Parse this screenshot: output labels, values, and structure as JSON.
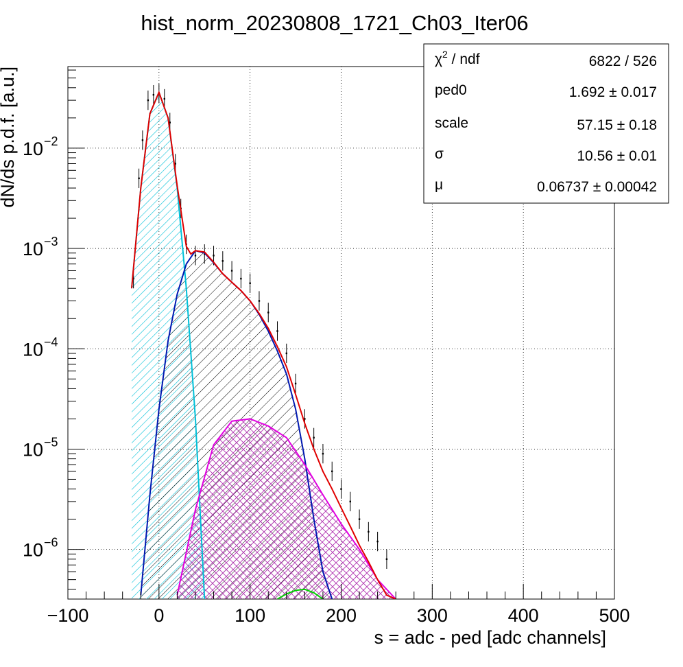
{
  "chart_data": {
    "type": "line",
    "title": "hist_norm_20230808_1721_Ch03_Iter06",
    "xlabel": "s = adc - ped [adc channels]",
    "ylabel": "dN/ds p.d.f. [a.u.]",
    "xlim": [
      -100,
      500
    ],
    "ylim": [
      3.2e-07,
      0.065
    ],
    "yscale": "log",
    "grid": true,
    "x_ticks": [
      {
        "value": -100,
        "label": "−100"
      },
      {
        "value": 0,
        "label": "0"
      },
      {
        "value": 100,
        "label": "100"
      },
      {
        "value": 200,
        "label": "200"
      },
      {
        "value": 300,
        "label": "300"
      },
      {
        "value": 400,
        "label": "400"
      },
      {
        "value": 500,
        "label": "500"
      }
    ],
    "y_ticks": [
      {
        "value": 0.01,
        "base": "10",
        "exp": "−2"
      },
      {
        "value": 0.001,
        "base": "10",
        "exp": "−3"
      },
      {
        "value": 0.0001,
        "base": "10",
        "exp": "−4"
      },
      {
        "value": 1e-05,
        "base": "10",
        "exp": "−5"
      },
      {
        "value": 1e-06,
        "base": "10",
        "exp": "−6"
      }
    ],
    "stats": {
      "chi2_symbol": "χ",
      "chi2_sup": "2",
      "chi2_rest": " / ndf",
      "rows": [
        {
          "name": "ped0",
          "value": "1.692 ± 0.017"
        },
        {
          "name": "scale",
          "value": "57.15 ± 0.18"
        },
        {
          "name": "σ",
          "value": "10.56 ± 0.01"
        },
        {
          "name": "μ",
          "value": "0.06737 ± 0.00042"
        }
      ],
      "chi2_value": "6822 / 526"
    },
    "series": [
      {
        "color": "#00c0d8",
        "hatch": "cyan-diagonal",
        "x": [
          -30,
          -20,
          -10,
          0,
          10,
          20,
          30,
          40,
          50
        ],
        "y": [
          0.0004,
          0.004,
          0.022,
          0.036,
          0.02,
          0.004,
          0.0004,
          2e-05,
          3e-07
        ]
      },
      {
        "color": "#0018b0",
        "hatch": "black-diagonal",
        "x": [
          -20,
          -10,
          0,
          10,
          20,
          30,
          40,
          50,
          60,
          70,
          80,
          90,
          100,
          110,
          120,
          130,
          140,
          150,
          160,
          170,
          180,
          190
        ],
        "y": [
          3.5e-07,
          3.5e-06,
          2.5e-05,
          0.00012,
          0.00035,
          0.0007,
          0.00095,
          0.0009,
          0.00072,
          0.00056,
          0.00046,
          0.00038,
          0.0003,
          0.00022,
          0.00015,
          9.5e-05,
          5.6e-05,
          2.5e-05,
          8e-06,
          2e-06,
          6e-07,
          3.2e-07
        ]
      },
      {
        "color": "#e000e0",
        "hatch": "magenta-cross",
        "x": [
          20,
          40,
          60,
          80,
          100,
          120,
          140,
          160,
          180,
          200,
          220,
          240,
          260
        ],
        "y": [
          3.5e-07,
          2.5e-06,
          1.1e-05,
          1.9e-05,
          2e-05,
          1.7e-05,
          1.3e-05,
          7e-06,
          3.5e-06,
          1.8e-06,
          1e-06,
          5e-07,
          3.2e-07
        ]
      },
      {
        "color": "#00d000",
        "x": [
          130,
          140,
          150,
          160,
          170,
          180
        ],
        "y": [
          3.2e-07,
          3.6e-07,
          3.9e-07,
          4e-07,
          3.7e-07,
          3.2e-07
        ]
      },
      {
        "color": "#e00000",
        "x": [
          -30,
          -20,
          -10,
          0,
          10,
          20,
          30,
          35,
          40,
          50,
          60,
          70,
          80,
          90,
          100,
          110,
          120,
          130,
          140,
          150,
          160,
          170,
          180,
          190,
          200,
          210,
          220,
          230,
          240,
          250,
          260
        ],
        "y": [
          0.0004,
          0.004,
          0.022,
          0.036,
          0.02,
          0.0042,
          0.00105,
          0.00088,
          0.00095,
          0.00092,
          0.00073,
          0.00056,
          0.00046,
          0.00038,
          0.0003,
          0.000225,
          0.00016,
          0.000105,
          6.6e-05,
          3.5e-05,
          1.8e-05,
          1e-05,
          6e-06,
          4e-06,
          2.6e-06,
          1.7e-06,
          1.1e-06,
          7.5e-07,
          5e-07,
          3.5e-07,
          3.2e-07
        ]
      }
    ],
    "data_points": {
      "x": [
        -28,
        -22,
        -18,
        -12,
        -6,
        0,
        6,
        12,
        18,
        24,
        30,
        40,
        50,
        60,
        70,
        80,
        90,
        100,
        110,
        120,
        130,
        140,
        150,
        160,
        170,
        180,
        190,
        200,
        210,
        220,
        230,
        240,
        250
      ],
      "y": [
        0.0005,
        0.005,
        0.012,
        0.03,
        0.034,
        0.035,
        0.031,
        0.018,
        0.007,
        0.0025,
        0.0011,
        0.00085,
        0.00088,
        0.00085,
        0.00075,
        0.0006,
        0.0005,
        0.00045,
        0.0003,
        0.00023,
        0.00015,
        9e-05,
        4.5e-05,
        2e-05,
        1.3e-05,
        9e-06,
        6e-06,
        4e-06,
        3e-06,
        2e-06,
        1.5e-06,
        1.2e-06,
        8e-07
      ]
    }
  }
}
